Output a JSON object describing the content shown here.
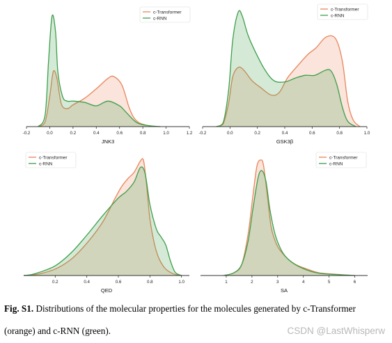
{
  "chart_data": [
    {
      "type": "area",
      "xlabel": "JNK3",
      "xlim": [
        -0.2,
        1.2
      ],
      "ylim": [
        0,
        6.4
      ],
      "xticks": [
        -0.2,
        0.0,
        0.2,
        0.4,
        0.6,
        0.8,
        1.0,
        1.2
      ],
      "legend": "top-right",
      "series": [
        {
          "name": "c-Transformer",
          "color": "#e8855a",
          "x": [
            -0.1,
            -0.04,
            0.0,
            0.03,
            0.06,
            0.1,
            0.15,
            0.2,
            0.3,
            0.4,
            0.5,
            0.55,
            0.62,
            0.68,
            0.72,
            0.77,
            0.85,
            0.95
          ],
          "y": [
            0.0,
            0.25,
            1.6,
            2.9,
            2.6,
            1.2,
            0.95,
            1.15,
            1.5,
            2.0,
            2.55,
            2.65,
            2.2,
            1.05,
            0.5,
            0.2,
            0.05,
            0.0
          ]
        },
        {
          "name": "c-RNN",
          "color": "#3c9e4a",
          "x": [
            -0.1,
            -0.04,
            -0.01,
            0.02,
            0.05,
            0.07,
            0.11,
            0.15,
            0.2,
            0.3,
            0.4,
            0.5,
            0.6,
            0.65,
            0.72,
            0.77,
            0.85,
            0.95
          ],
          "y": [
            0.0,
            0.6,
            3.5,
            5.85,
            5.0,
            2.9,
            1.6,
            1.35,
            1.35,
            1.28,
            1.1,
            1.35,
            1.1,
            0.8,
            0.35,
            0.15,
            0.05,
            0.0
          ]
        }
      ]
    },
    {
      "type": "area",
      "xlabel": "GSK3β",
      "xlim": [
        -0.2,
        1.0
      ],
      "ylim": [
        0,
        4.6
      ],
      "xticks": [
        -0.2,
        0.0,
        0.2,
        0.4,
        0.6,
        0.8,
        1.0
      ],
      "legend": "top-right",
      "series": [
        {
          "name": "c-Transformer",
          "color": "#e8855a",
          "x": [
            -0.1,
            -0.05,
            -0.01,
            0.02,
            0.06,
            0.1,
            0.16,
            0.22,
            0.3,
            0.36,
            0.42,
            0.5,
            0.57,
            0.63,
            0.7,
            0.77,
            0.82,
            0.86,
            0.9,
            0.95
          ],
          "y": [
            0.0,
            0.1,
            0.9,
            1.9,
            2.25,
            2.15,
            1.75,
            1.5,
            1.2,
            1.3,
            1.85,
            2.35,
            2.75,
            3.0,
            3.4,
            3.35,
            2.5,
            0.95,
            0.25,
            0.0
          ]
        },
        {
          "name": "c-RNN",
          "color": "#3c9e4a",
          "x": [
            -0.1,
            -0.05,
            -0.01,
            0.02,
            0.06,
            0.09,
            0.13,
            0.18,
            0.25,
            0.32,
            0.4,
            0.48,
            0.55,
            0.62,
            0.7,
            0.74,
            0.78,
            0.82,
            0.86,
            0.92
          ],
          "y": [
            0.0,
            0.15,
            1.4,
            3.3,
            4.35,
            4.2,
            3.5,
            2.9,
            2.2,
            1.75,
            1.7,
            1.85,
            1.95,
            1.95,
            2.15,
            2.1,
            1.6,
            0.75,
            0.2,
            0.0
          ]
        }
      ]
    },
    {
      "type": "area",
      "xlabel": "QED",
      "xlim": [
        0.0,
        1.05
      ],
      "ylim": [
        0,
        3.75
      ],
      "xticks": [
        0.2,
        0.4,
        0.6,
        0.8,
        1.0
      ],
      "legend": "top-left",
      "series": [
        {
          "name": "c-Transformer",
          "color": "#e8855a",
          "x": [
            0.0,
            0.05,
            0.1,
            0.2,
            0.3,
            0.4,
            0.5,
            0.58,
            0.62,
            0.66,
            0.7,
            0.74,
            0.76,
            0.78,
            0.8,
            0.83,
            0.86,
            0.9,
            0.95,
            1.0
          ],
          "y": [
            0.0,
            0.02,
            0.05,
            0.2,
            0.5,
            1.0,
            1.65,
            2.4,
            2.75,
            3.0,
            3.2,
            3.55,
            3.55,
            2.75,
            1.75,
            0.95,
            0.5,
            0.2,
            0.05,
            0.0
          ]
        },
        {
          "name": "c-RNN",
          "color": "#3c9e4a",
          "x": [
            0.0,
            0.05,
            0.1,
            0.2,
            0.3,
            0.4,
            0.5,
            0.6,
            0.65,
            0.7,
            0.74,
            0.77,
            0.8,
            0.84,
            0.87,
            0.9,
            0.93,
            0.96,
            1.0
          ],
          "y": [
            0.0,
            0.03,
            0.1,
            0.3,
            0.7,
            1.25,
            1.85,
            2.4,
            2.6,
            2.9,
            3.35,
            3.15,
            2.2,
            1.45,
            1.2,
            0.95,
            0.45,
            0.1,
            0.0
          ]
        }
      ]
    },
    {
      "type": "area",
      "xlabel": "SA",
      "xlim": [
        0.0,
        6.5
      ],
      "ylim": [
        0,
        0.88
      ],
      "xticks": [
        1,
        2,
        3,
        4,
        5,
        6
      ],
      "legend": "top-right",
      "series": [
        {
          "name": "c-Transformer",
          "color": "#e8855a",
          "x": [
            0.9,
            1.3,
            1.6,
            1.85,
            2.05,
            2.2,
            2.35,
            2.45,
            2.6,
            2.75,
            2.95,
            3.15,
            3.4,
            3.7,
            4.1,
            4.6,
            5.2,
            6.0
          ],
          "y": [
            0.0,
            0.02,
            0.08,
            0.3,
            0.6,
            0.8,
            0.84,
            0.8,
            0.58,
            0.35,
            0.23,
            0.17,
            0.12,
            0.08,
            0.05,
            0.02,
            0.01,
            0.0
          ]
        },
        {
          "name": "c-RNN",
          "color": "#3c9e4a",
          "x": [
            0.9,
            1.3,
            1.6,
            1.85,
            2.05,
            2.25,
            2.4,
            2.55,
            2.7,
            2.9,
            3.1,
            3.3,
            3.6,
            4.0,
            4.5,
            5.0,
            6.0
          ],
          "y": [
            0.0,
            0.02,
            0.08,
            0.25,
            0.5,
            0.72,
            0.76,
            0.68,
            0.48,
            0.3,
            0.2,
            0.14,
            0.09,
            0.05,
            0.02,
            0.01,
            0.0
          ]
        }
      ]
    }
  ],
  "caption": {
    "label": "Fig. S1.",
    "text_line1": " Distributions of the molecular properties for the molecules generated by c-Transformer",
    "text_line2": "(orange) and c-RNN (green)."
  },
  "watermark": "CSDN @LastWhisperw"
}
